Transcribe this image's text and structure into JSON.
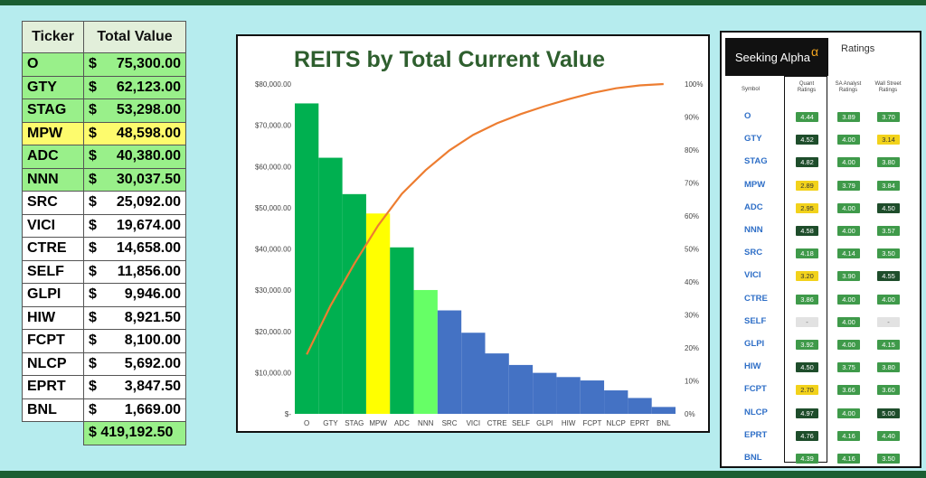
{
  "table": {
    "header": {
      "ticker": "Ticker",
      "value": "Total Value"
    },
    "currency": "$",
    "rows": [
      {
        "ticker": "O",
        "value": "75,300.00",
        "highlight": "green"
      },
      {
        "ticker": "GTY",
        "value": "62,123.00",
        "highlight": "green"
      },
      {
        "ticker": "STAG",
        "value": "53,298.00",
        "highlight": "green"
      },
      {
        "ticker": "MPW",
        "value": "48,598.00",
        "highlight": "yellow"
      },
      {
        "ticker": "ADC",
        "value": "40,380.00",
        "highlight": "green"
      },
      {
        "ticker": "NNN",
        "value": "30,037.50",
        "highlight": "green"
      },
      {
        "ticker": "SRC",
        "value": "25,092.00",
        "highlight": "white"
      },
      {
        "ticker": "VICI",
        "value": "19,674.00",
        "highlight": "white"
      },
      {
        "ticker": "CTRE",
        "value": "14,658.00",
        "highlight": "white"
      },
      {
        "ticker": "SELF",
        "value": "11,856.00",
        "highlight": "white"
      },
      {
        "ticker": "GLPI",
        "value": "9,946.00",
        "highlight": "white"
      },
      {
        "ticker": "HIW",
        "value": "8,921.50",
        "highlight": "white"
      },
      {
        "ticker": "FCPT",
        "value": "8,100.00",
        "highlight": "white"
      },
      {
        "ticker": "NLCP",
        "value": "5,692.00",
        "highlight": "white"
      },
      {
        "ticker": "EPRT",
        "value": "3,847.50",
        "highlight": "white"
      },
      {
        "ticker": "BNL",
        "value": "1,669.00",
        "highlight": "white"
      }
    ],
    "total": "$ 419,192.50"
  },
  "chart_data": {
    "type": "bar",
    "title": "REITS by Total Current Value",
    "categories": [
      "O",
      "GTY",
      "STAG",
      "MPW",
      "ADC",
      "NNN",
      "SRC",
      "VICI",
      "CTRE",
      "SELF",
      "GLPI",
      "HIW",
      "FCPT",
      "NLCP",
      "EPRT",
      "BNL"
    ],
    "values": [
      75300,
      62123,
      53298,
      48598,
      40380,
      30037.5,
      25092,
      19674,
      14658,
      11856,
      9946,
      8921.5,
      8100,
      5692,
      3847.5,
      1669
    ],
    "bar_colors": [
      "#00b050",
      "#00b050",
      "#00b050",
      "#ffff00",
      "#00b050",
      "#66ff66",
      "#4472c4",
      "#4472c4",
      "#4472c4",
      "#4472c4",
      "#4472c4",
      "#4472c4",
      "#4472c4",
      "#4472c4",
      "#4472c4",
      "#4472c4"
    ],
    "cumulative_percent_line": {
      "color": "#ed7d31",
      "values": [
        18.0,
        32.8,
        45.5,
        57.1,
        66.7,
        73.9,
        79.9,
        84.6,
        88.1,
        90.9,
        93.3,
        95.4,
        97.3,
        98.7,
        99.6,
        100.0
      ]
    },
    "ylim": [
      0,
      80000
    ],
    "y_ticks": [
      "$-",
      "$10,000.00",
      "$20,000.00",
      "$30,000.00",
      "$40,000.00",
      "$50,000.00",
      "$60,000.00",
      "$70,000.00",
      "$80,000.00"
    ],
    "y2_ticks": [
      "0%",
      "10%",
      "20%",
      "30%",
      "40%",
      "50%",
      "60%",
      "70%",
      "80%",
      "90%",
      "100%"
    ],
    "title_color": "#2e5f2e"
  },
  "seeking_alpha": {
    "logo": "Seeking Alpha",
    "logo_mark": "α",
    "tab": "Ratings",
    "columns": {
      "symbol": "Symbol",
      "quant": [
        "Quant",
        "Ratings"
      ],
      "sa": [
        "SA Analyst",
        "Ratings"
      ],
      "wall": [
        "Wall Street",
        "Ratings"
      ]
    },
    "rows": [
      {
        "symbol": "O",
        "quant": "4.44",
        "sa": "3.89",
        "wall": "3.70"
      },
      {
        "symbol": "GTY",
        "quant": "4.52",
        "sa": "4.00",
        "wall": "3.14"
      },
      {
        "symbol": "STAG",
        "quant": "4.82",
        "sa": "4.00",
        "wall": "3.80"
      },
      {
        "symbol": "MPW",
        "quant": "2.89",
        "sa": "3.79",
        "wall": "3.84"
      },
      {
        "symbol": "ADC",
        "quant": "2.95",
        "sa": "4.00",
        "wall": "4.50"
      },
      {
        "symbol": "NNN",
        "quant": "4.58",
        "sa": "4.00",
        "wall": "3.57"
      },
      {
        "symbol": "SRC",
        "quant": "4.18",
        "sa": "4.14",
        "wall": "3.50"
      },
      {
        "symbol": "VICI",
        "quant": "3.20",
        "sa": "3.90",
        "wall": "4.55"
      },
      {
        "symbol": "CTRE",
        "quant": "3.86",
        "sa": "4.00",
        "wall": "4.00"
      },
      {
        "symbol": "SELF",
        "quant": "-",
        "sa": "4.00",
        "wall": "-"
      },
      {
        "symbol": "GLPI",
        "quant": "3.92",
        "sa": "4.00",
        "wall": "4.15"
      },
      {
        "symbol": "HIW",
        "quant": "4.50",
        "sa": "3.75",
        "wall": "3.80"
      },
      {
        "symbol": "FCPT",
        "quant": "2.70",
        "sa": "3.66",
        "wall": "3.60"
      },
      {
        "symbol": "NLCP",
        "quant": "4.97",
        "sa": "4.00",
        "wall": "5.00"
      },
      {
        "symbol": "EPRT",
        "quant": "4.76",
        "sa": "4.16",
        "wall": "4.40"
      },
      {
        "symbol": "BNL",
        "quant": "4.39",
        "sa": "4.16",
        "wall": "3.50"
      }
    ],
    "colors": {
      "strong_buy": "#1e4d2b",
      "buy": "#3f9a4a",
      "hold": "#f2d21b",
      "none": "#e2e2e2"
    }
  }
}
